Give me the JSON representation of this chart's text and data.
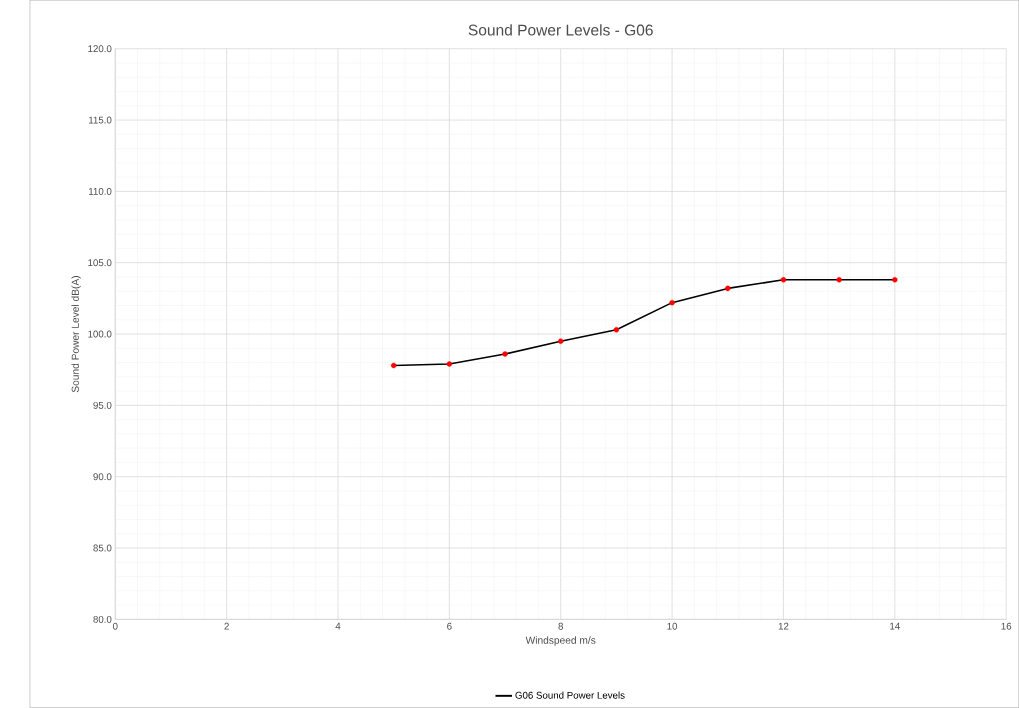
{
  "chart_data": {
    "type": "line",
    "title": "Sound Power Levels - G06",
    "xlabel": "Windspeed m/s",
    "ylabel": "Sound Power Level dB(A)",
    "x": [
      5,
      6,
      7,
      8,
      9,
      10,
      11,
      12,
      13,
      14
    ],
    "series": [
      {
        "name": "G06 Sound Power Levels",
        "color": "#000000",
        "colors": [
          "#ff0000",
          "#ff0000",
          "#ff0000",
          "#ff0000",
          "#ff0000",
          "#ff0000",
          "#ff0000",
          "#ff0000",
          "#ff0000",
          "#ff0000"
        ],
        "values": [
          97.8,
          97.9,
          98.6,
          99.5,
          100.3,
          102.2,
          103.2,
          103.8,
          103.8,
          103.8
        ]
      }
    ],
    "xlim": [
      0,
      16
    ],
    "xticks": [
      0,
      2,
      4,
      6,
      8,
      10,
      12,
      14,
      16
    ],
    "ylim": [
      80,
      120
    ],
    "yticks": [
      {
        "value": 80,
        "label": "80.0"
      },
      {
        "value": 85,
        "label": "85.0"
      },
      {
        "value": 90,
        "label": "90.0"
      },
      {
        "value": 95,
        "label": "95.0"
      },
      {
        "value": 100,
        "label": "100.0"
      },
      {
        "value": 105,
        "label": "105.0"
      },
      {
        "value": 110,
        "label": "110.0"
      },
      {
        "value": 115,
        "label": "115.0"
      },
      {
        "value": 120,
        "label": "120.0"
      }
    ],
    "grid": true,
    "legend": "bottom",
    "marker": "circle",
    "line_style": "solid"
  }
}
